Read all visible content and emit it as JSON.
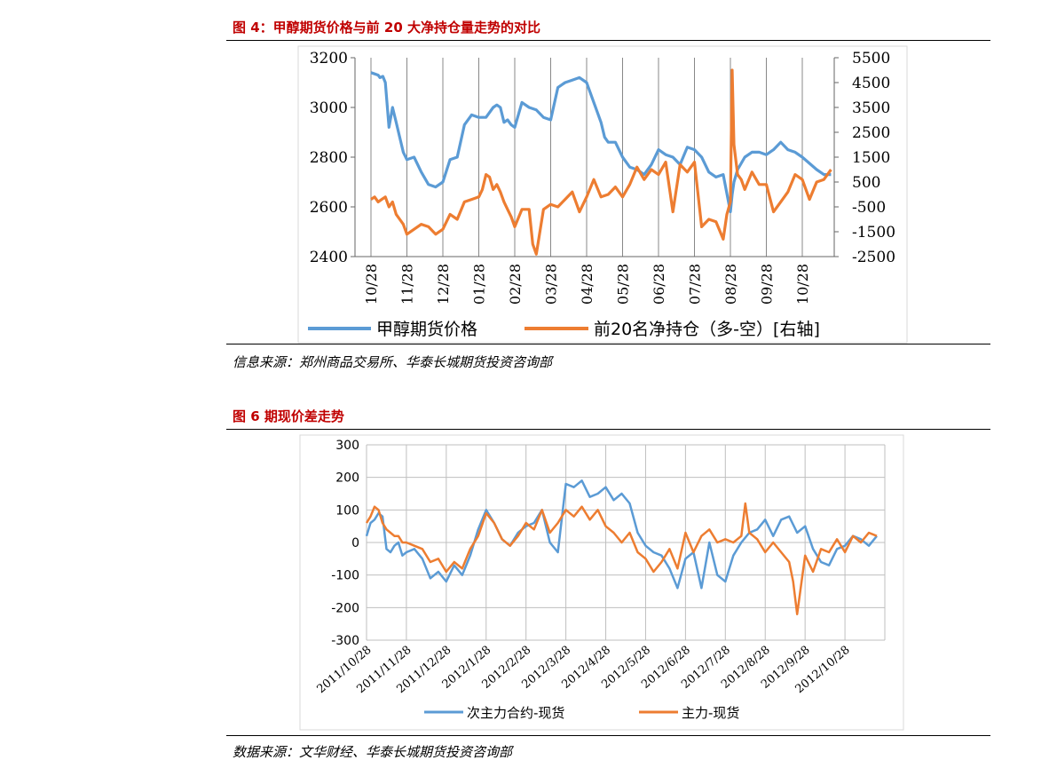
{
  "figure4": {
    "title": "图 4：甲醇期货价格与前 20 大净持仓量走势的对比",
    "source": "信息来源：郑州商品交易所、华泰长城期货投资咨询部"
  },
  "figure6": {
    "title": "图 6  期现价差走势",
    "source": "数据来源：文华财经、华泰长城期货投资咨询部"
  },
  "chart_data": [
    {
      "type": "line",
      "categories": [
        "10/28",
        "11/28",
        "12/28",
        "01/28",
        "02/28",
        "03/28",
        "04/28",
        "05/28",
        "06/28",
        "07/28",
        "08/28",
        "09/28",
        "10/28"
      ],
      "ylim": [
        2400,
        3200
      ],
      "y2lim": [
        -2500,
        5500
      ],
      "yticks": [
        2400,
        2600,
        2800,
        3000,
        3200
      ],
      "y2ticks": [
        -2500,
        -1500,
        -500,
        500,
        1500,
        2500,
        3500,
        4500,
        5500
      ],
      "grid": "vertical",
      "legend": "bottom",
      "series": [
        {
          "name": "甲醇期货价格",
          "color": "#5b9bd5",
          "axis": "left",
          "x": [
            0,
            0.1,
            0.2,
            0.25,
            0.33,
            0.4,
            0.5,
            0.6,
            0.7,
            0.8,
            0.9,
            1.0,
            1.2,
            1.4,
            1.6,
            1.8,
            2.0,
            2.2,
            2.4,
            2.6,
            2.8,
            3.0,
            3.2,
            3.4,
            3.5,
            3.6,
            3.7,
            3.8,
            3.9,
            4.0,
            4.2,
            4.4,
            4.6,
            4.8,
            5.0,
            5.2,
            5.4,
            5.6,
            5.8,
            6.0,
            6.2,
            6.4,
            6.5,
            6.6,
            6.8,
            7.0,
            7.2,
            7.4,
            7.6,
            7.8,
            8.0,
            8.2,
            8.4,
            8.6,
            8.8,
            9.0,
            9.2,
            9.4,
            9.6,
            9.8,
            10.0,
            10.05,
            10.1,
            10.2,
            10.4,
            10.6,
            10.8,
            11.0,
            11.2,
            11.4,
            11.6,
            11.8,
            12.0,
            12.4,
            12.6,
            12.8
          ],
          "y": [
            3140,
            3135,
            3130,
            3120,
            3125,
            3100,
            2920,
            3000,
            2940,
            2880,
            2820,
            2790,
            2800,
            2740,
            2690,
            2680,
            2700,
            2790,
            2800,
            2930,
            2970,
            2960,
            2960,
            3000,
            3010,
            3000,
            2940,
            2950,
            2930,
            2920,
            3020,
            3000,
            2990,
            2960,
            2950,
            3080,
            3100,
            3110,
            3120,
            3100,
            3020,
            2940,
            2880,
            2860,
            2860,
            2800,
            2760,
            2750,
            2730,
            2770,
            2830,
            2810,
            2800,
            2770,
            2840,
            2830,
            2800,
            2740,
            2720,
            2730,
            2580,
            2650,
            2700,
            2750,
            2800,
            2820,
            2820,
            2810,
            2830,
            2860,
            2830,
            2820,
            2800,
            2750,
            2730,
            2730
          ]
        },
        {
          "name": "前20名净持仓（多-空）[右轴]",
          "color": "#ed7d31",
          "axis": "right",
          "x": [
            0,
            0.1,
            0.2,
            0.3,
            0.4,
            0.5,
            0.6,
            0.7,
            0.8,
            0.9,
            1.0,
            1.2,
            1.4,
            1.6,
            1.8,
            2.0,
            2.2,
            2.4,
            2.6,
            2.8,
            3.0,
            3.1,
            3.2,
            3.3,
            3.4,
            3.5,
            3.6,
            3.7,
            3.8,
            3.9,
            4.0,
            4.2,
            4.4,
            4.5,
            4.6,
            4.8,
            5.0,
            5.2,
            5.4,
            5.6,
            5.8,
            6.0,
            6.2,
            6.4,
            6.6,
            6.8,
            7.0,
            7.2,
            7.4,
            7.6,
            7.8,
            8.0,
            8.2,
            8.4,
            8.6,
            8.8,
            9.0,
            9.2,
            9.4,
            9.6,
            9.8,
            9.9,
            10.0,
            10.05,
            10.1,
            10.2,
            10.3,
            10.4,
            10.6,
            10.8,
            11.0,
            11.2,
            11.4,
            11.6,
            11.8,
            12.0,
            12.2,
            12.4,
            12.6,
            12.8
          ],
          "y": [
            -200,
            -100,
            -300,
            -200,
            -100,
            -500,
            -300,
            -800,
            -1000,
            -1200,
            -1600,
            -1400,
            -1200,
            -1300,
            -1600,
            -1400,
            -800,
            -1000,
            -300,
            -200,
            -100,
            200,
            800,
            700,
            200,
            400,
            100,
            -300,
            -600,
            -900,
            -1300,
            -600,
            -600,
            -2000,
            -2400,
            -600,
            -400,
            -500,
            -200,
            100,
            -700,
            -100,
            600,
            -100,
            0,
            300,
            -100,
            400,
            1100,
            600,
            1000,
            800,
            1300,
            -700,
            1200,
            900,
            1300,
            -1300,
            -1000,
            -1100,
            -1800,
            -800,
            -300,
            5000,
            2000,
            800,
            600,
            200,
            900,
            400,
            400,
            -700,
            -300,
            100,
            800,
            600,
            -200,
            500,
            600,
            1000
          ]
        }
      ]
    },
    {
      "type": "line",
      "categories": [
        "2011/10/28",
        "2011/11/28",
        "2011/12/28",
        "2012/1/28",
        "2012/2/28",
        "2012/3/28",
        "2012/4/28",
        "2012/5/28",
        "2012/6/28",
        "2012/7/28",
        "2012/8/28",
        "2012/9/28",
        "2012/10/28"
      ],
      "ylim": [
        -300,
        300
      ],
      "yticks": [
        -300,
        -200,
        -100,
        0,
        100,
        200,
        300
      ],
      "grid": "both",
      "legend": "bottom",
      "series": [
        {
          "name": "次主力合约-现货",
          "color": "#5b9bd5",
          "x": [
            0,
            0.1,
            0.2,
            0.3,
            0.4,
            0.5,
            0.6,
            0.7,
            0.8,
            0.9,
            1.0,
            1.2,
            1.4,
            1.6,
            1.8,
            2.0,
            2.2,
            2.4,
            2.6,
            2.8,
            3.0,
            3.1,
            3.2,
            3.4,
            3.6,
            3.8,
            4.0,
            4.2,
            4.4,
            4.6,
            4.8,
            5.0,
            5.2,
            5.4,
            5.6,
            5.8,
            6.0,
            6.2,
            6.4,
            6.6,
            6.8,
            7.0,
            7.2,
            7.4,
            7.6,
            7.8,
            8.0,
            8.2,
            8.4,
            8.6,
            8.8,
            9.0,
            9.2,
            9.4,
            9.6,
            9.8,
            10.0,
            10.2,
            10.4,
            10.6,
            10.8,
            11.0,
            11.2,
            11.4,
            11.6,
            11.8,
            12.0,
            12.2,
            12.4,
            12.6,
            12.8
          ],
          "y": [
            20,
            60,
            70,
            90,
            80,
            -20,
            -30,
            -10,
            0,
            -40,
            -30,
            -20,
            -50,
            -110,
            -90,
            -120,
            -70,
            -100,
            -40,
            40,
            100,
            80,
            60,
            10,
            -10,
            30,
            50,
            60,
            100,
            0,
            -30,
            180,
            170,
            190,
            140,
            150,
            170,
            130,
            150,
            120,
            30,
            -10,
            -30,
            -40,
            -80,
            -140,
            -50,
            -30,
            -140,
            0,
            -100,
            -120,
            -40,
            0,
            30,
            40,
            70,
            20,
            70,
            80,
            30,
            50,
            -20,
            -60,
            -70,
            -20,
            -10,
            20,
            10,
            -10,
            20
          ]
        },
        {
          "name": "主力-现货",
          "color": "#ed7d31",
          "x": [
            0,
            0.1,
            0.2,
            0.3,
            0.4,
            0.5,
            0.6,
            0.7,
            0.8,
            0.9,
            1.0,
            1.2,
            1.4,
            1.6,
            1.8,
            2.0,
            2.2,
            2.4,
            2.6,
            2.8,
            3.0,
            3.2,
            3.4,
            3.6,
            3.8,
            4.0,
            4.2,
            4.4,
            4.6,
            4.8,
            5.0,
            5.2,
            5.4,
            5.6,
            5.8,
            6.0,
            6.2,
            6.4,
            6.6,
            6.8,
            7.0,
            7.2,
            7.4,
            7.6,
            7.8,
            8.0,
            8.2,
            8.4,
            8.6,
            8.8,
            9.0,
            9.2,
            9.4,
            9.5,
            9.6,
            9.8,
            10.0,
            10.2,
            10.4,
            10.6,
            10.7,
            10.8,
            11.0,
            11.2,
            11.4,
            11.6,
            11.8,
            12.0,
            12.2,
            12.4,
            12.6,
            12.8
          ],
          "y": [
            60,
            80,
            110,
            100,
            60,
            40,
            30,
            20,
            20,
            0,
            0,
            -10,
            -20,
            -60,
            -50,
            -90,
            -60,
            -80,
            -20,
            20,
            90,
            60,
            10,
            -10,
            20,
            60,
            40,
            100,
            30,
            60,
            100,
            80,
            110,
            70,
            100,
            50,
            30,
            0,
            30,
            -30,
            -50,
            -90,
            -60,
            -20,
            -80,
            30,
            -30,
            20,
            40,
            0,
            10,
            0,
            20,
            120,
            30,
            10,
            -30,
            0,
            -30,
            -60,
            -120,
            -220,
            -40,
            -90,
            -20,
            -30,
            10,
            -30,
            20,
            0,
            30,
            20
          ]
        }
      ]
    }
  ]
}
